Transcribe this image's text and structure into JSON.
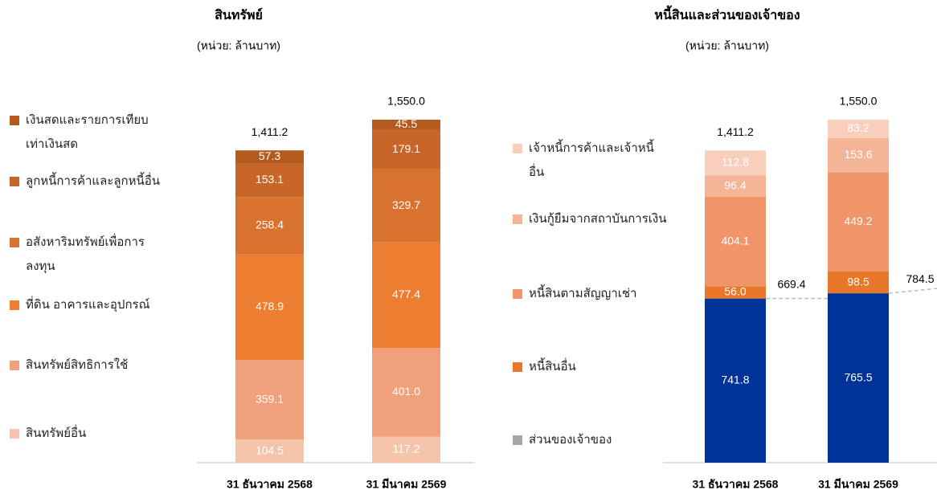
{
  "chart_data": [
    {
      "type": "bar",
      "stacked": true,
      "title": "สินทรัพย์",
      "subtitle": "(หน่วย: ล้านบาท)",
      "categories": [
        "31 ธันวาคม 2568",
        "31 มีนาคม 2569"
      ],
      "series": [
        {
          "name": "สินทรัพย์อื่น",
          "color": "#f6c3ab",
          "values": [
            104.5,
            117.2
          ],
          "value_labels": [
            "104.5",
            "117.2"
          ]
        },
        {
          "name": "สินทรัพย์สิทธิการใช้",
          "color": "#f0a07a",
          "values": [
            359.1,
            401.0
          ],
          "value_labels": [
            "359.1",
            "401.0"
          ]
        },
        {
          "name": "ที่ดิน อาคารและอุปกรณ์",
          "color": "#ed7d31",
          "values": [
            478.9,
            477.4
          ],
          "value_labels": [
            "478.9",
            "477.4"
          ]
        },
        {
          "name": "อสังหาริมทรัพย์เพื่อการลงทุน",
          "color": "#d9722f",
          "values": [
            258.4,
            329.7
          ],
          "value_labels": [
            "258.4",
            "329.7"
          ]
        },
        {
          "name": "ลูกหนี้การค้าและลูกหนี้อื่น",
          "color": "#c8662a",
          "values": [
            153.1,
            179.1
          ],
          "value_labels": [
            "153.1",
            "179.1"
          ]
        },
        {
          "name": "เงินสดและรายการเทียบเท่าเงินสด",
          "color": "#b35a1f",
          "values": [
            57.3,
            45.5
          ],
          "value_labels": [
            "57.3",
            "45.5"
          ]
        }
      ],
      "totals": [
        1411.2,
        1550.0
      ],
      "total_labels": [
        "1,411.2",
        "1,550.0"
      ]
    },
    {
      "type": "bar",
      "stacked": true,
      "title": "หนี้สินและส่วนของเจ้าของ",
      "subtitle": "(หน่วย: ล้านบาท)",
      "categories": [
        "31 ธันวาคม 2568",
        "31 มีนาคม 2569"
      ],
      "series": [
        {
          "name": "ส่วนของเจ้าของ",
          "color": "#003399",
          "legend_color": "#a6a6a6",
          "values": [
            741.8,
            765.5
          ],
          "value_labels": [
            "741.8",
            "765.5"
          ]
        },
        {
          "name": "หนี้สินอื่น",
          "color": "#e8772a",
          "values": [
            56.0,
            98.5
          ],
          "value_labels": [
            "56.0",
            "98.5"
          ]
        },
        {
          "name": "หนี้สินตามสัญญาเช่า",
          "color": "#f0956a",
          "values": [
            404.1,
            449.2
          ],
          "value_labels": [
            "404.1",
            "449.2"
          ]
        },
        {
          "name": "เงินกู้ยืมจากสถาบันการเงิน",
          "color": "#f4b496",
          "values": [
            96.4,
            153.6
          ],
          "value_labels": [
            "96.4",
            "153.6"
          ]
        },
        {
          "name": "เจ้าหนี้การค้าและเจ้าหนี้อื่น",
          "color": "#f8cfbd",
          "values": [
            112.8,
            83.2
          ],
          "value_labels": [
            "112.8",
            "83.2"
          ]
        }
      ],
      "totals": [
        1411.2,
        1550.0
      ],
      "total_labels": [
        "1,411.2",
        "1,550.0"
      ],
      "liability_totals": [
        669.4,
        784.5
      ],
      "liability_total_labels": [
        "669.4",
        "784.5"
      ]
    }
  ]
}
